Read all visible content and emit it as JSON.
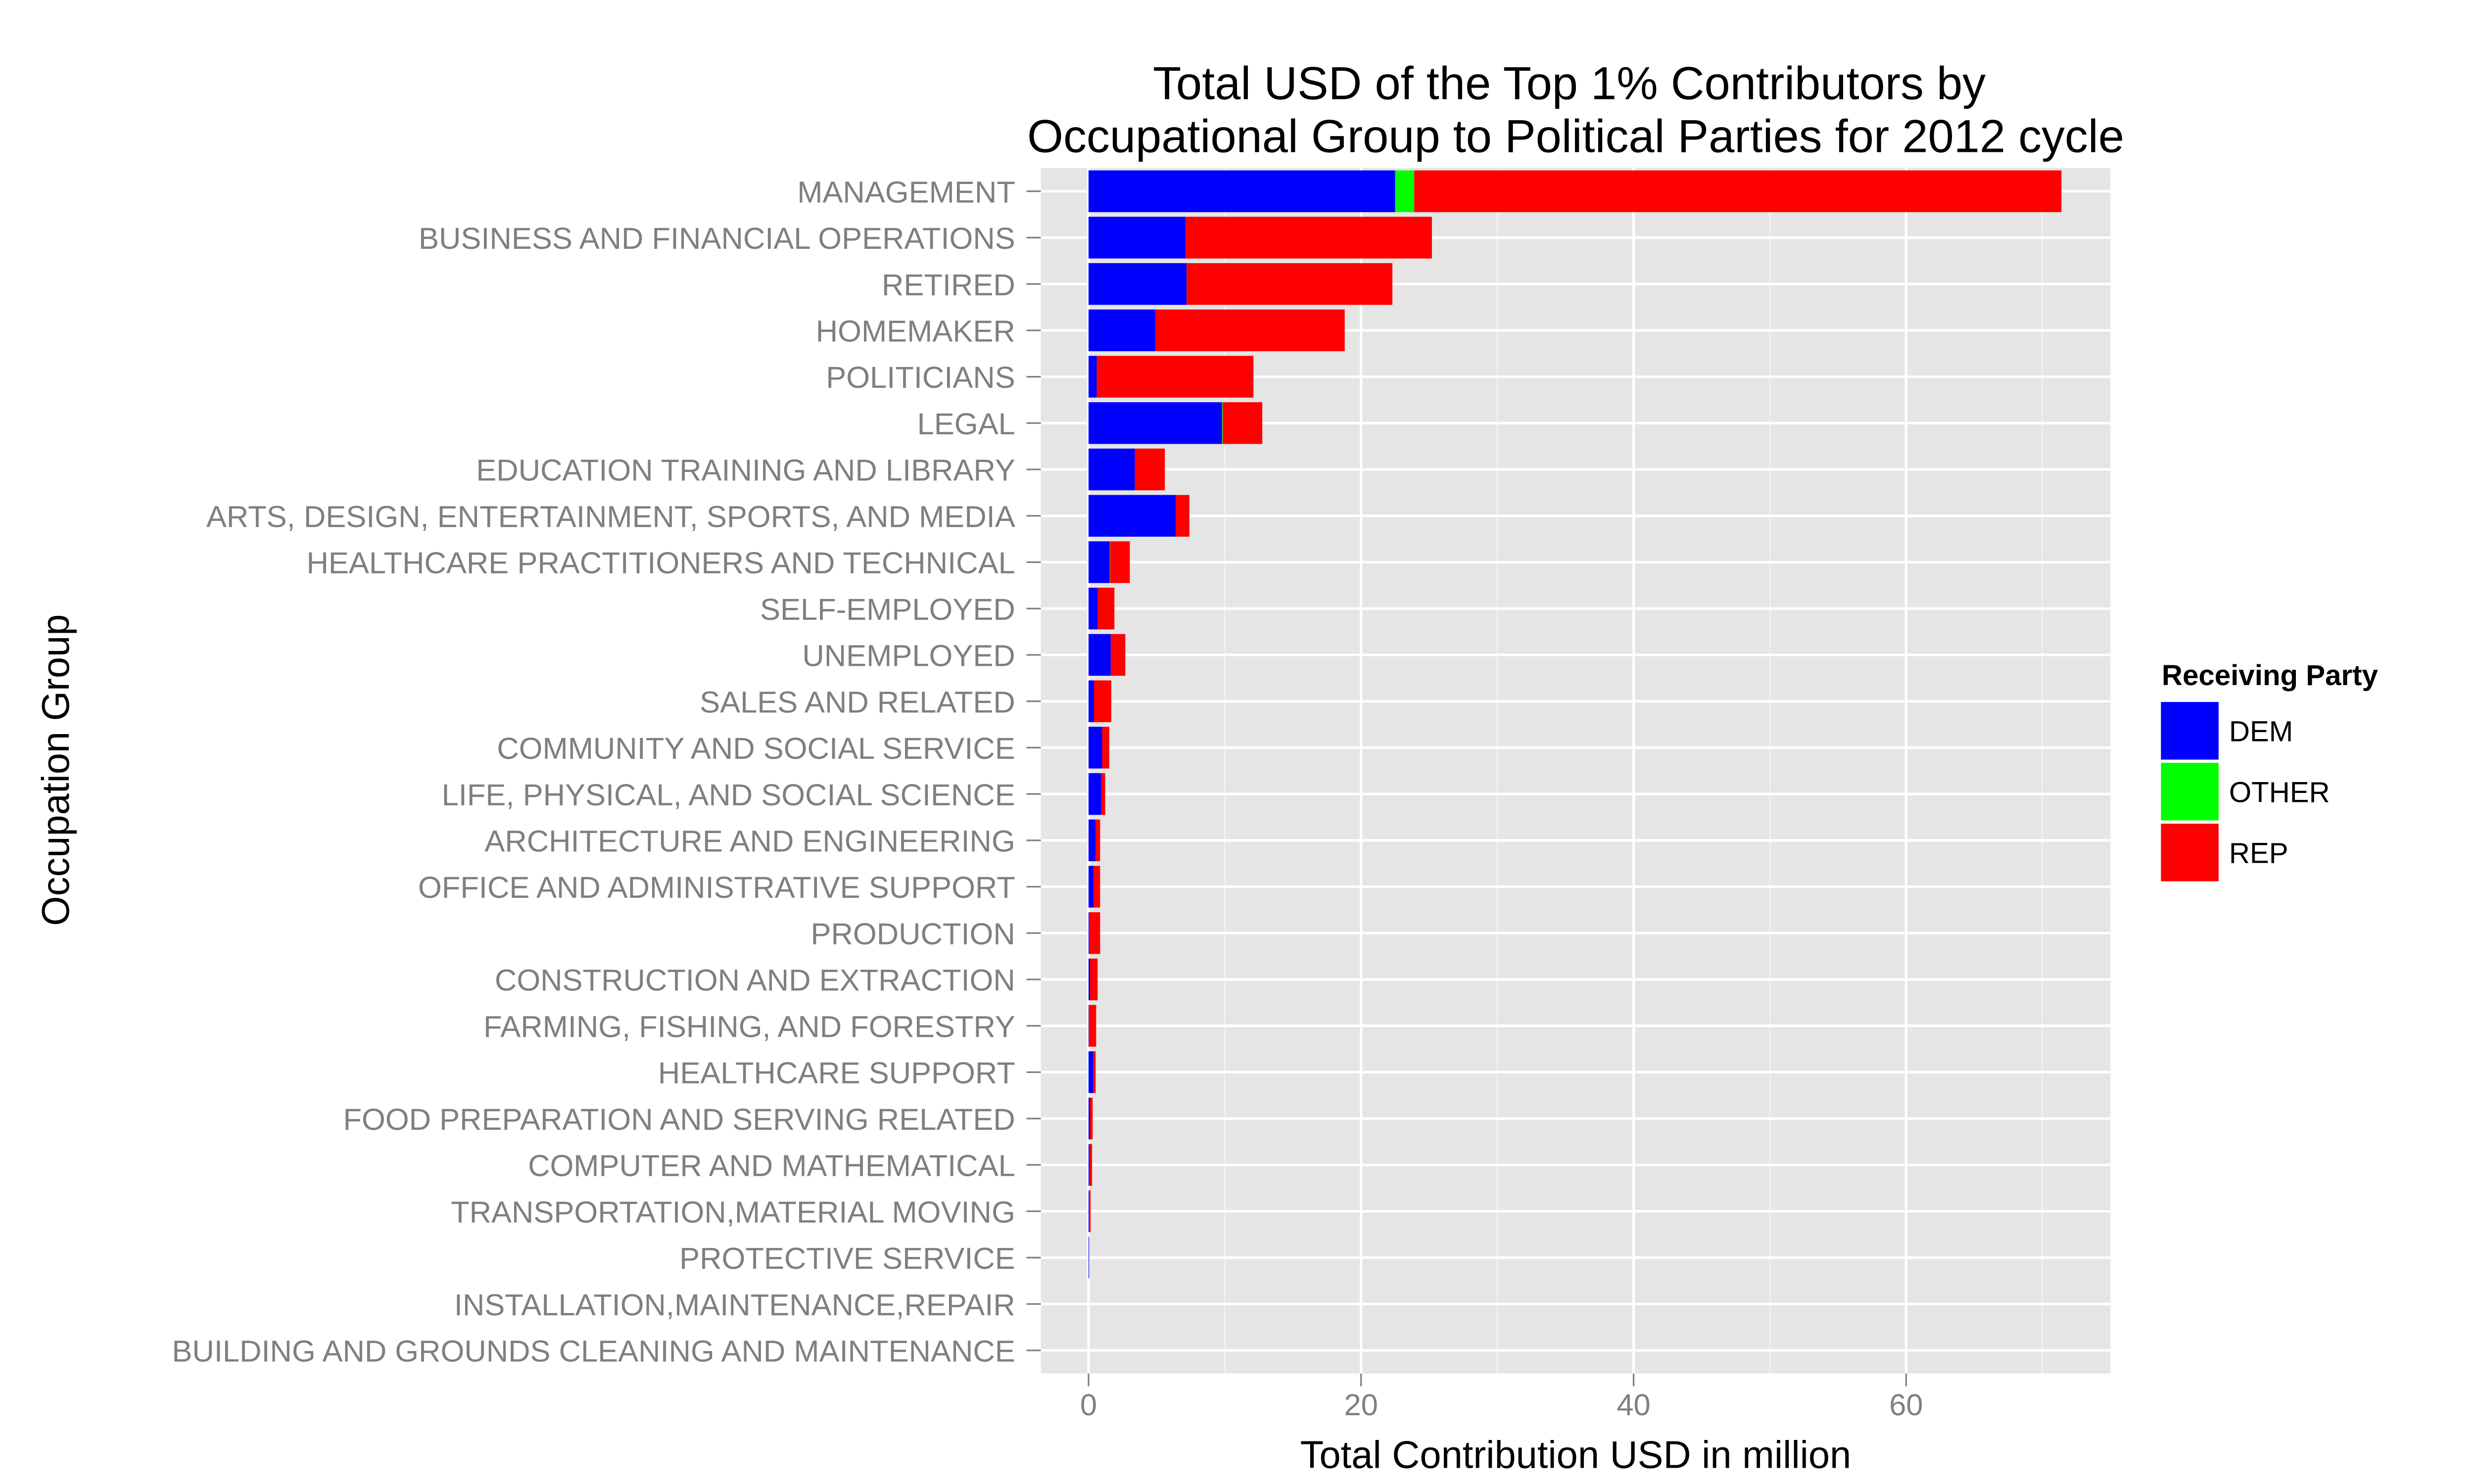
{
  "chart_data": {
    "type": "bar",
    "orientation": "horizontal",
    "stacked": true,
    "title": [
      "Total USD of the Top 1% Contributors by",
      "Occupational Group to Political Parties for 2012 cycle"
    ],
    "xlabel": "Total Contribution USD in million",
    "ylabel": "Occupation Group",
    "xlim": [
      -3.5,
      75
    ],
    "xticks": [
      0,
      20,
      40,
      60
    ],
    "grid": true,
    "legend": {
      "title": "Receiving Party",
      "placement": "right"
    },
    "categories": [
      "MANAGEMENT",
      "BUSINESS AND FINANCIAL OPERATIONS",
      "RETIRED",
      "HOMEMAKER",
      "POLITICIANS",
      "LEGAL",
      "EDUCATION TRAINING AND LIBRARY",
      "ARTS, DESIGN, ENTERTAINMENT, SPORTS, AND MEDIA",
      "HEALTHCARE PRACTITIONERS AND TECHNICAL",
      "SELF-EMPLOYED",
      "UNEMPLOYED",
      "SALES AND RELATED",
      "COMMUNITY AND SOCIAL SERVICE",
      "LIFE, PHYSICAL, AND SOCIAL SCIENCE",
      "ARCHITECTURE AND ENGINEERING",
      "OFFICE AND ADMINISTRATIVE SUPPORT",
      "PRODUCTION",
      "CONSTRUCTION AND EXTRACTION",
      "FARMING, FISHING, AND FORESTRY",
      "HEALTHCARE SUPPORT",
      "FOOD PREPARATION AND SERVING RELATED",
      "COMPUTER AND MATHEMATICAL",
      "TRANSPORTATION,MATERIAL MOVING",
      "PROTECTIVE SERVICE",
      "INSTALLATION,MAINTENANCE,REPAIR",
      "BUILDING AND GROUNDS CLEANING AND MAINTENANCE"
    ],
    "series": [
      {
        "name": "DEM",
        "color": "#0000ff",
        "values": [
          22.5,
          7.1,
          7.2,
          4.9,
          0.6,
          9.8,
          3.4,
          6.4,
          1.55,
          0.67,
          1.63,
          0.4,
          1.0,
          0.93,
          0.52,
          0.37,
          0.04,
          0.11,
          0.02,
          0.33,
          0.11,
          0.07,
          0.04,
          0.03,
          0,
          0
        ]
      },
      {
        "name": "OTHER",
        "color": "#00ff00",
        "values": [
          1.4,
          0,
          0,
          0,
          0,
          0.05,
          0,
          0,
          0.03,
          0,
          0,
          0,
          0,
          0,
          0,
          0,
          0,
          0,
          0,
          0,
          0,
          0,
          0,
          0,
          0,
          0
        ]
      },
      {
        "name": "REP",
        "color": "#ff0000",
        "values": [
          47.5,
          18.1,
          15.1,
          13.9,
          11.5,
          2.9,
          2.2,
          1.0,
          1.45,
          1.23,
          1.07,
          1.27,
          0.52,
          0.29,
          0.33,
          0.48,
          0.81,
          0.56,
          0.54,
          0.19,
          0.19,
          0.19,
          0.11,
          0,
          0,
          0
        ]
      }
    ]
  }
}
